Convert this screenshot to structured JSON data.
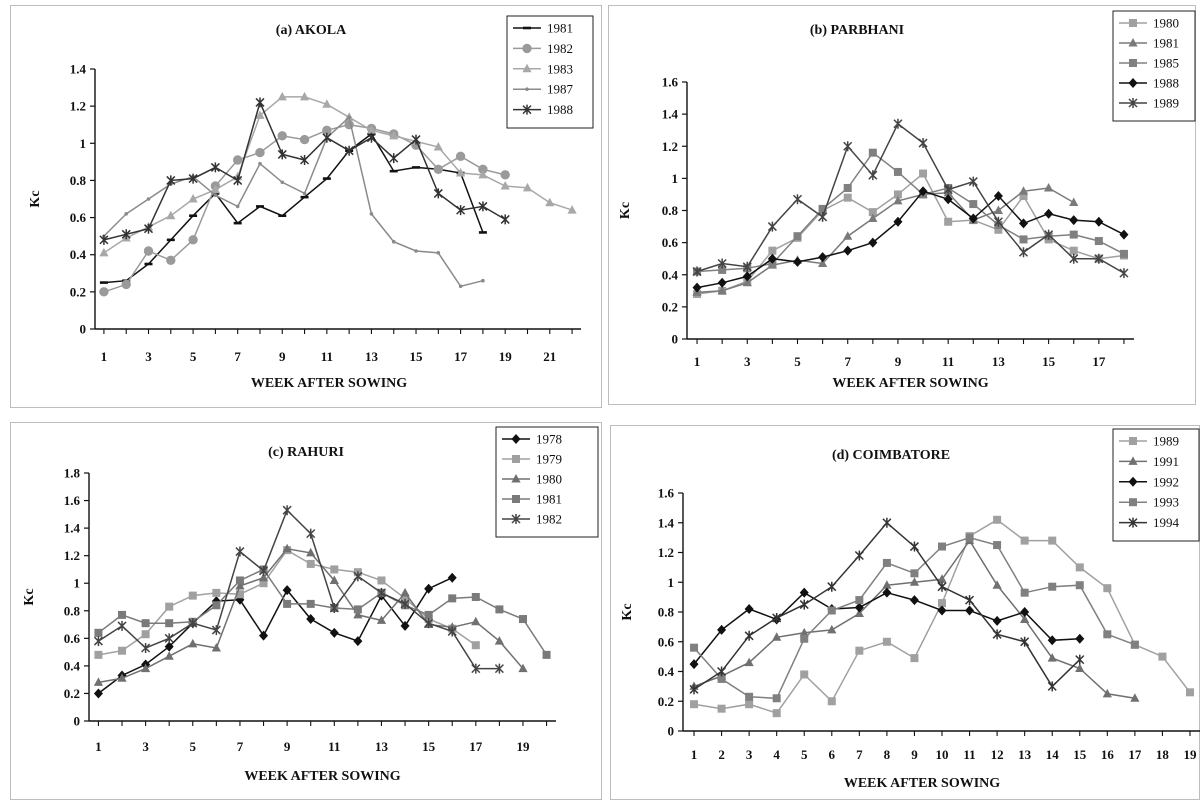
{
  "chart_data": [
    {
      "type": "line",
      "title": "(a)  AKOLA",
      "xlabel": "WEEK AFTER SOWING",
      "ylabel": "Kc",
      "ylim": [
        0,
        1.4
      ],
      "yticks": [
        "0",
        "0.2",
        "0.4",
        "0.6",
        "0.8",
        "1",
        "1.2",
        "1.4"
      ],
      "xlim": [
        0.6,
        22.4
      ],
      "xticks": [
        "1",
        "3",
        "5",
        "7",
        "9",
        "11",
        "13",
        "15",
        "17",
        "19",
        "21"
      ],
      "grid": false,
      "legend_position": "top-right",
      "series": [
        {
          "name": "1981",
          "color": "#111111",
          "marker": "dash",
          "x": [
            1,
            2,
            3,
            4,
            5,
            6,
            7,
            8,
            9,
            10,
            11,
            12,
            13,
            14,
            15,
            16,
            17,
            18
          ],
          "values": [
            0.25,
            0.26,
            0.35,
            0.48,
            0.61,
            0.73,
            0.57,
            0.66,
            0.61,
            0.71,
            0.81,
            0.96,
            1.05,
            0.85,
            0.87,
            0.86,
            0.84,
            0.52
          ]
        },
        {
          "name": "1982",
          "color": "#9a9a9a",
          "marker": "circle",
          "x": [
            1,
            2,
            3,
            4,
            5,
            6,
            7,
            8,
            9,
            10,
            11,
            12,
            13,
            14,
            15,
            16,
            17,
            18,
            19
          ],
          "values": [
            0.2,
            0.24,
            0.42,
            0.37,
            0.48,
            0.77,
            0.91,
            0.95,
            1.04,
            1.02,
            1.07,
            1.1,
            1.08,
            1.05,
            0.99,
            0.86,
            0.93,
            0.86,
            0.83
          ]
        },
        {
          "name": "1983",
          "color": "#a8a8a8",
          "marker": "triangle",
          "x": [
            1,
            2,
            3,
            4,
            5,
            6,
            7,
            8,
            9,
            10,
            11,
            12,
            13,
            14,
            15,
            16,
            17,
            18,
            19,
            20,
            21,
            22
          ],
          "values": [
            0.41,
            0.49,
            0.55,
            0.61,
            0.7,
            0.75,
            0.82,
            1.15,
            1.25,
            1.25,
            1.21,
            1.14,
            1.07,
            1.04,
            1.01,
            0.98,
            0.84,
            0.83,
            0.77,
            0.76,
            0.68,
            0.64
          ]
        },
        {
          "name": "1987",
          "color": "#8a8a8a",
          "marker": "dot",
          "x": [
            1,
            2,
            3,
            4,
            5,
            6,
            7,
            8,
            9,
            10,
            11,
            12,
            13,
            14,
            15,
            16,
            17,
            18
          ],
          "values": [
            0.5,
            0.62,
            0.7,
            0.78,
            0.82,
            0.72,
            0.66,
            0.89,
            0.79,
            0.73,
            1.03,
            1.14,
            0.62,
            0.47,
            0.42,
            0.41,
            0.23,
            0.26
          ]
        },
        {
          "name": "1988",
          "color": "#333333",
          "marker": "star",
          "x": [
            1,
            2,
            3,
            4,
            5,
            6,
            7,
            8,
            9,
            10,
            11,
            12,
            13,
            14,
            15,
            16,
            17,
            18,
            19
          ],
          "values": [
            0.48,
            0.51,
            0.54,
            0.8,
            0.81,
            0.87,
            0.8,
            1.22,
            0.94,
            0.91,
            1.03,
            0.96,
            1.03,
            0.92,
            1.02,
            0.73,
            0.64,
            0.66,
            0.59
          ]
        }
      ]
    },
    {
      "type": "line",
      "title": "(b)  PARBHANI",
      "xlabel": "WEEK AFTER SOWING",
      "ylabel": "Kc",
      "ylim": [
        0,
        1.6
      ],
      "yticks": [
        "0",
        "0.2",
        "0.4",
        "0.6",
        "0.8",
        "1",
        "1.2",
        "1.4",
        "1.6"
      ],
      "xlim": [
        0.6,
        18.4
      ],
      "xticks": [
        "1",
        "3",
        "5",
        "7",
        "9",
        "11",
        "13",
        "15",
        "17"
      ],
      "grid": false,
      "legend_position": "top-right",
      "series": [
        {
          "name": "1980",
          "color": "#a0a0a0",
          "marker": "square",
          "x": [
            1,
            2,
            3,
            4,
            5,
            6,
            7,
            8,
            9,
            10,
            11,
            12,
            13,
            14,
            15,
            16,
            17,
            18
          ],
          "values": [
            0.28,
            0.3,
            0.36,
            0.55,
            0.63,
            0.8,
            0.88,
            0.79,
            0.9,
            1.03,
            0.73,
            0.74,
            0.68,
            0.89,
            0.62,
            0.55,
            0.5,
            0.52
          ]
        },
        {
          "name": "1981",
          "color": "#7a7a7a",
          "marker": "triangle",
          "x": [
            1,
            2,
            3,
            4,
            5,
            6,
            7,
            8,
            9,
            10,
            11,
            12,
            13,
            14,
            15,
            16
          ],
          "values": [
            0.29,
            0.3,
            0.35,
            0.46,
            0.49,
            0.47,
            0.64,
            0.75,
            0.86,
            0.9,
            0.91,
            0.74,
            0.8,
            0.92,
            0.94,
            0.85
          ]
        },
        {
          "name": "1985",
          "color": "#808080",
          "marker": "square",
          "x": [
            1,
            2,
            3,
            4,
            5,
            6,
            7,
            8,
            9,
            10,
            11,
            12,
            13,
            14,
            15,
            16,
            17,
            18
          ],
          "values": [
            0.42,
            0.43,
            0.44,
            0.47,
            0.64,
            0.81,
            0.94,
            1.16,
            1.04,
            0.9,
            0.94,
            0.84,
            0.71,
            0.62,
            0.64,
            0.65,
            0.61,
            0.53
          ]
        },
        {
          "name": "1988",
          "color": "#111111",
          "marker": "diamond",
          "x": [
            1,
            2,
            3,
            4,
            5,
            6,
            7,
            8,
            9,
            10,
            11,
            12,
            13,
            14,
            15,
            16,
            17,
            18
          ],
          "values": [
            0.32,
            0.35,
            0.39,
            0.5,
            0.48,
            0.51,
            0.55,
            0.6,
            0.73,
            0.92,
            0.87,
            0.75,
            0.89,
            0.72,
            0.78,
            0.74,
            0.73,
            0.65
          ]
        },
        {
          "name": "1989",
          "color": "#444444",
          "marker": "star",
          "x": [
            1,
            2,
            3,
            4,
            5,
            6,
            7,
            8,
            9,
            10,
            11,
            12,
            13,
            14,
            15,
            16,
            17,
            18
          ],
          "values": [
            0.42,
            0.47,
            0.45,
            0.7,
            0.87,
            0.76,
            1.2,
            1.02,
            1.34,
            1.22,
            0.93,
            0.98,
            0.73,
            0.54,
            0.65,
            0.5,
            0.5,
            0.41
          ]
        }
      ]
    },
    {
      "type": "line",
      "title": "(c)   RAHURI",
      "xlabel": "WEEK AFTER SOWING",
      "ylabel": "Kc",
      "ylim": [
        0,
        1.8
      ],
      "yticks": [
        "0",
        "0.2",
        "0.4",
        "0.6",
        "0.8",
        "1",
        "1.2",
        "1.4",
        "1.6",
        "1.8"
      ],
      "xlim": [
        0.6,
        20.4
      ],
      "xticks": [
        "1",
        "3",
        "5",
        "7",
        "9",
        "11",
        "13",
        "15",
        "17",
        "19"
      ],
      "grid": false,
      "legend_position": "top-right",
      "series": [
        {
          "name": "1978",
          "color": "#111111",
          "marker": "diamond",
          "x": [
            1,
            2,
            3,
            4,
            5,
            6,
            7,
            8,
            9,
            10,
            11,
            12,
            13,
            14,
            15,
            16
          ],
          "values": [
            0.2,
            0.33,
            0.41,
            0.54,
            0.71,
            0.87,
            0.88,
            0.62,
            0.95,
            0.74,
            0.64,
            0.58,
            0.91,
            0.69,
            0.96,
            1.04
          ]
        },
        {
          "name": "1979",
          "color": "#a0a0a0",
          "marker": "square",
          "x": [
            1,
            2,
            3,
            4,
            5,
            6,
            7,
            8,
            9,
            10,
            11,
            12,
            13,
            14,
            15,
            16,
            17
          ],
          "values": [
            0.48,
            0.51,
            0.63,
            0.83,
            0.91,
            0.93,
            0.92,
            1.0,
            1.24,
            1.14,
            1.1,
            1.08,
            1.02,
            0.89,
            0.74,
            0.67,
            0.55
          ]
        },
        {
          "name": "1980",
          "color": "#707070",
          "marker": "triangle",
          "x": [
            1,
            2,
            3,
            4,
            5,
            6,
            7,
            8,
            9,
            10,
            11,
            12,
            13,
            14,
            15,
            16,
            17,
            18,
            19
          ],
          "values": [
            0.28,
            0.31,
            0.38,
            0.47,
            0.56,
            0.53,
            0.98,
            1.04,
            1.25,
            1.22,
            1.02,
            0.77,
            0.73,
            0.93,
            0.7,
            0.68,
            0.72,
            0.58,
            0.38
          ]
        },
        {
          "name": "1981",
          "color": "#7a7a7a",
          "marker": "square",
          "x": [
            1,
            2,
            3,
            4,
            5,
            6,
            7,
            8,
            9,
            10,
            11,
            12,
            13,
            14,
            15,
            16,
            17,
            18,
            19,
            20
          ],
          "values": [
            0.64,
            0.77,
            0.71,
            0.71,
            0.72,
            0.84,
            1.02,
            1.1,
            0.85,
            0.85,
            0.82,
            0.81,
            0.93,
            0.84,
            0.77,
            0.89,
            0.9,
            0.81,
            0.74,
            0.48
          ]
        },
        {
          "name": "1982",
          "color": "#444444",
          "marker": "star",
          "x": [
            1,
            2,
            3,
            4,
            5,
            6,
            7,
            8,
            9,
            10,
            11,
            12,
            13,
            14,
            15,
            16,
            17,
            18
          ],
          "values": [
            0.58,
            0.69,
            0.53,
            0.6,
            0.71,
            0.66,
            1.23,
            1.09,
            1.53,
            1.36,
            0.82,
            1.05,
            0.93,
            0.85,
            0.71,
            0.65,
            0.38,
            0.38
          ]
        }
      ]
    },
    {
      "type": "line",
      "title": "(d)   COIMBATORE",
      "xlabel": "WEEK AFTER SOWING",
      "ylabel": "Kc",
      "ylim": [
        0,
        1.6
      ],
      "yticks": [
        "0",
        "0.2",
        "0.4",
        "0.6",
        "0.8",
        "1",
        "1.2",
        "1.4",
        "1.6"
      ],
      "xlim": [
        0.6,
        19.4
      ],
      "xticks": [
        "1",
        "2",
        "3",
        "4",
        "5",
        "6",
        "7",
        "8",
        "9",
        "10",
        "11",
        "12",
        "13",
        "14",
        "15",
        "16",
        "17",
        "18",
        "19"
      ],
      "grid": false,
      "legend_position": "top-right",
      "series": [
        {
          "name": "1989",
          "color": "#a0a0a0",
          "marker": "square",
          "x": [
            1,
            2,
            3,
            4,
            5,
            6,
            7,
            8,
            9,
            10,
            11,
            12,
            13,
            14,
            15,
            16,
            17,
            18,
            19
          ],
          "values": [
            0.18,
            0.15,
            0.18,
            0.12,
            0.38,
            0.2,
            0.54,
            0.6,
            0.49,
            0.86,
            1.31,
            1.42,
            1.28,
            1.28,
            1.1,
            0.96,
            0.58,
            0.5,
            0.26
          ]
        },
        {
          "name": "1991",
          "color": "#707070",
          "marker": "triangle",
          "x": [
            1,
            2,
            3,
            4,
            5,
            6,
            7,
            8,
            9,
            10,
            11,
            12,
            13,
            14,
            15,
            16,
            17
          ],
          "values": [
            0.3,
            0.37,
            0.46,
            0.63,
            0.66,
            0.68,
            0.79,
            0.98,
            1.0,
            1.02,
            1.28,
            0.98,
            0.75,
            0.49,
            0.42,
            0.25,
            0.22
          ]
        },
        {
          "name": "1992",
          "color": "#111111",
          "marker": "diamond",
          "x": [
            1,
            2,
            3,
            4,
            5,
            6,
            7,
            8,
            9,
            10,
            11,
            12,
            13,
            14,
            15
          ],
          "values": [
            0.45,
            0.68,
            0.82,
            0.75,
            0.93,
            0.82,
            0.83,
            0.93,
            0.88,
            0.81,
            0.81,
            0.74,
            0.8,
            0.61,
            0.62
          ]
        },
        {
          "name": "1993",
          "color": "#808080",
          "marker": "square",
          "x": [
            1,
            2,
            3,
            4,
            5,
            6,
            7,
            8,
            9,
            10,
            11,
            12,
            13,
            14,
            15,
            16,
            17
          ],
          "values": [
            0.56,
            0.35,
            0.23,
            0.22,
            0.62,
            0.81,
            0.88,
            1.13,
            1.06,
            1.24,
            1.3,
            1.25,
            0.93,
            0.97,
            0.98,
            0.65,
            0.58
          ]
        },
        {
          "name": "1994",
          "color": "#333333",
          "marker": "star",
          "x": [
            1,
            2,
            3,
            4,
            5,
            6,
            7,
            8,
            9,
            10,
            11,
            12,
            13,
            14,
            15
          ],
          "values": [
            0.28,
            0.4,
            0.64,
            0.76,
            0.85,
            0.97,
            1.18,
            1.4,
            1.24,
            0.97,
            0.88,
            0.65,
            0.6,
            0.3,
            0.48
          ]
        }
      ]
    }
  ]
}
